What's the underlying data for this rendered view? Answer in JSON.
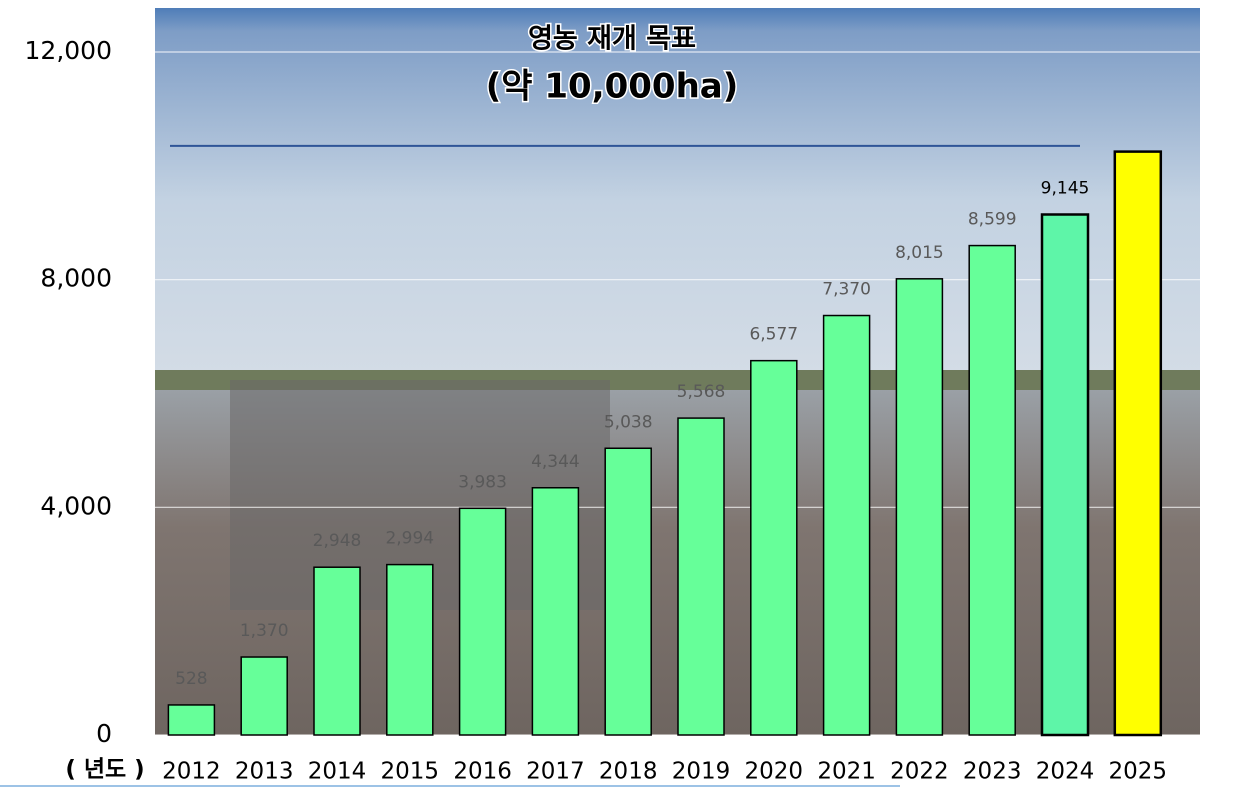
{
  "chart_data": {
    "type": "bar",
    "annotations": [
      "영농 재개 목표",
      "(약 10,000ha)"
    ],
    "x_label": "( 년도 )",
    "categories": [
      "2012",
      "2013",
      "2014",
      "2015",
      "2016",
      "2017",
      "2018",
      "2019",
      "2020",
      "2021",
      "2022",
      "2023",
      "2024",
      "2025"
    ],
    "values": [
      528,
      1370,
      2948,
      2994,
      3983,
      4344,
      5038,
      5568,
      6577,
      7370,
      8015,
      8599,
      9145,
      10250
    ],
    "value_labels": [
      "528",
      "1,370",
      "2,948",
      "2,994",
      "3,983",
      "4,344",
      "5,038",
      "5,568",
      "6,577",
      "7,370",
      "8,015",
      "8,599",
      "9,145",
      null
    ],
    "colors": [
      "#66ff99",
      "#66ff99",
      "#66ff99",
      "#66ff99",
      "#66ff99",
      "#66ff99",
      "#66ff99",
      "#66ff99",
      "#66ff99",
      "#66ff99",
      "#66ff99",
      "#66ff99",
      "#5ef5a8",
      "#ffff00"
    ],
    "reference_line": 10350,
    "reference_color": "#2f5597",
    "ylim": [
      0,
      12000
    ],
    "yticks": [
      0,
      {
        "value": 4000,
        "label": "4,000"
      },
      {
        "value": 8000,
        "label": "8,000"
      },
      {
        "value": 12000,
        "label": "12,000"
      }
    ],
    "grid": true
  }
}
